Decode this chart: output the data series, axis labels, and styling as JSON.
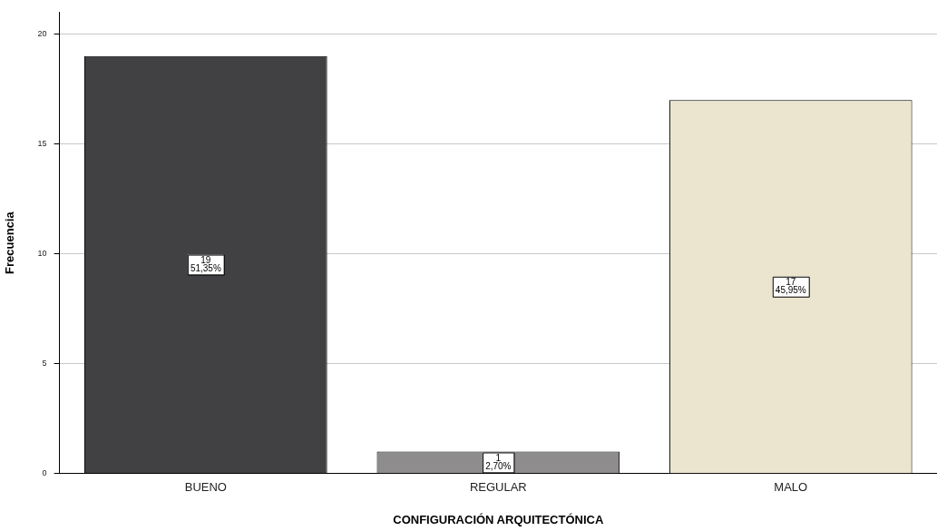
{
  "chart_data": {
    "type": "bar",
    "xlabel": "CONFIGURACIÓN ARQUITECTÓNICA",
    "ylabel": "Frecuencia",
    "categories": [
      "BUENO",
      "REGULAR",
      "MALO"
    ],
    "values": [
      19,
      1,
      17
    ],
    "colors": [
      "#414143",
      "#8e8c8c",
      "#ebe5cf"
    ],
    "value_labels": [
      "19\n51,35%",
      "1\n2,70%",
      "17\n45,95%"
    ],
    "ylim": [
      0,
      21
    ],
    "yticks": [
      0,
      5,
      10,
      15,
      20
    ],
    "grid": "y",
    "legend": false
  }
}
